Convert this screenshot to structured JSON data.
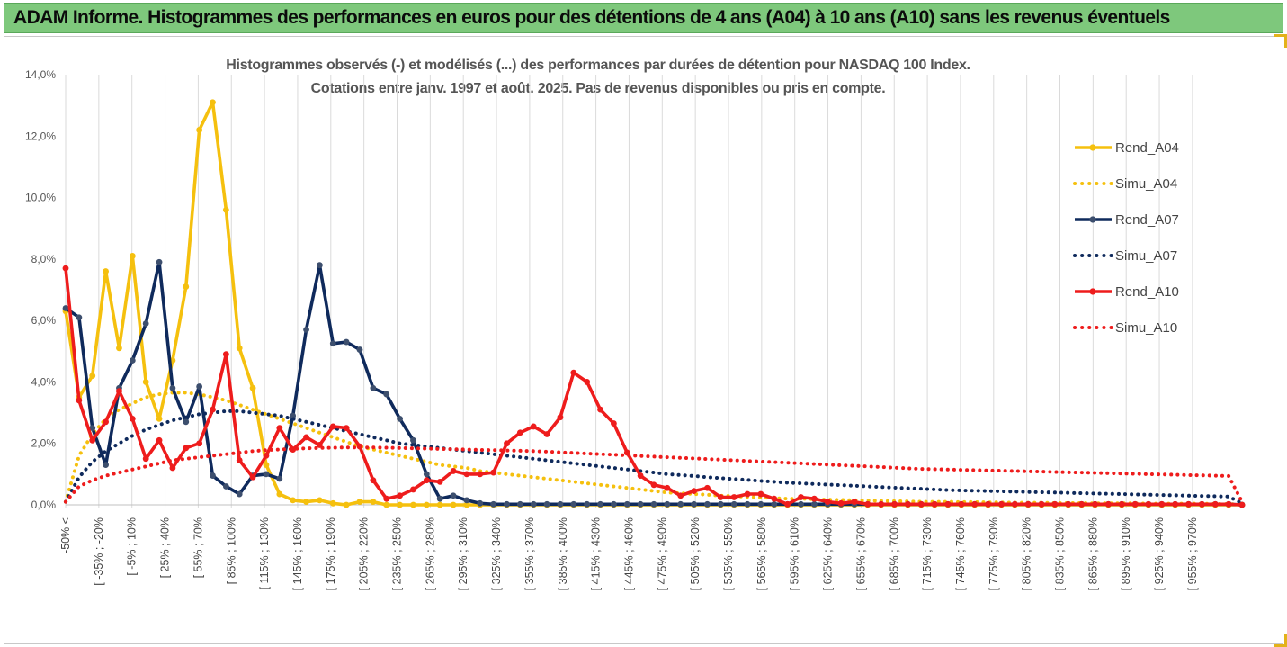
{
  "banner": {
    "title": "ADAM Informe. Histogrammes des performances en euros pour des détentions de 4 ans (A04) à 10 ans (A10) sans les revenus éventuels"
  },
  "colors": {
    "banner_bg": "#7ec87c",
    "A04": "#f5c00e",
    "A07": "#0f2a5c",
    "A10": "#ee1c1c"
  },
  "chart_data": {
    "type": "line",
    "title": "Histogrammes observés (-) et modélisés (...) des performances par durées de détention pour NASDAQ 100 Index.",
    "subtitle": "Cotations entre janv. 1997 et août. 2025. Pas de revenus disponibles ou pris en compte.",
    "ylim": [
      0,
      14
    ],
    "y_ticks": [
      "0,0%",
      "2,0%",
      "4,0%",
      "6,0%",
      "8,0%",
      "10,0%",
      "12,0%",
      "14,0%"
    ],
    "x_tick_labels": [
      "-50% <",
      "[ -35% ; -20%",
      "[ -5% ; 10%",
      "[ 25% ; 40%",
      "[ 55% ; 70%",
      "[ 85% ; 100%",
      "[ 115% ; 130%",
      "[ 145% ; 160%",
      "[ 175% ; 190%",
      "[ 205% ; 220%",
      "[ 235% ; 250%",
      "[ 265% ; 280%",
      "[ 295% ; 310%",
      "[ 325% ; 340%",
      "[ 355% ; 370%",
      "[ 385% ; 400%",
      "[ 415% ; 430%",
      "[ 445% ; 460%",
      "[ 475% ; 490%",
      "[ 505% ; 520%",
      "[ 535% ; 550%",
      "[ 565% ; 580%",
      "[ 595% ; 610%",
      "[ 625% ; 640%",
      "[ 655% ; 670%",
      "[ 685% ; 700%",
      "[ 715% ; 730%",
      "[ 745% ; 760%",
      "[ 775% ; 790%",
      "[ 805% ; 820%",
      "[ 835% ; 850%",
      "[ 865% ; 880%",
      "[ 895% ; 910%",
      "[ 925% ; 940%",
      "[ 955% ; 970%"
    ],
    "legend_position": "right",
    "grid": "vertical",
    "series": [
      {
        "name": "Rend_A04",
        "style": "solid",
        "color": "#f5c00e",
        "values": [
          6.3,
          3.5,
          4.2,
          7.6,
          5.1,
          8.1,
          4.0,
          2.8,
          4.7,
          7.1,
          12.2,
          13.1,
          9.6,
          5.1,
          3.8,
          1.3,
          0.35,
          0.15,
          0.1,
          0.15,
          0.05,
          0,
          0.1,
          0.1,
          0,
          0,
          0,
          0,
          0,
          0,
          0,
          0,
          0,
          0,
          0,
          0,
          0,
          0,
          0,
          0,
          0,
          0,
          0,
          0,
          0,
          0,
          0,
          0,
          0,
          0,
          0,
          0,
          0,
          0,
          0,
          0,
          0,
          0,
          0,
          0,
          0,
          0,
          0,
          0,
          0,
          0,
          0,
          0,
          0,
          0,
          0,
          0,
          0,
          0,
          0,
          0,
          0,
          0,
          0,
          0,
          0,
          0,
          0,
          0,
          0,
          0,
          0,
          0,
          0
        ]
      },
      {
        "name": "Simu_A04",
        "style": "dotted",
        "color": "#f5c00e",
        "values": [
          0.1,
          1.6,
          2.3,
          2.8,
          3.1,
          3.3,
          3.5,
          3.6,
          3.65,
          3.65,
          3.6,
          3.5,
          3.4,
          3.25,
          3.1,
          2.95,
          2.8,
          2.65,
          2.5,
          2.35,
          2.2,
          2.05,
          1.9,
          1.8,
          1.7,
          1.6,
          1.5,
          1.4,
          1.3,
          1.25,
          1.2,
          1.1,
          1.05,
          1.0,
          0.95,
          0.9,
          0.85,
          0.8,
          0.75,
          0.7,
          0.65,
          0.6,
          0.55,
          0.5,
          0.45,
          0.4,
          0.38,
          0.35,
          0.33,
          0.3,
          0.28,
          0.26,
          0.24,
          0.22,
          0.2,
          0.2,
          0.18,
          0.17,
          0.16,
          0.15,
          0.14,
          0.13,
          0.12,
          0.11,
          0.1,
          0.1,
          0.1,
          0.09,
          0.09,
          0.08,
          0.08,
          0.07,
          0.07,
          0.07,
          0.06,
          0.06,
          0.06,
          0.05,
          0.05,
          0.05,
          0.05,
          0.04,
          0.04,
          0.04,
          0.04,
          0.04,
          0.03,
          0.03,
          0.01
        ]
      },
      {
        "name": "Rend_A07",
        "style": "solid",
        "color": "#0f2a5c",
        "values": [
          6.4,
          6.1,
          2.5,
          1.3,
          3.8,
          4.7,
          5.9,
          7.9,
          3.8,
          2.7,
          3.85,
          0.95,
          0.6,
          0.35,
          0.95,
          1.0,
          0.85,
          2.9,
          5.7,
          7.8,
          5.25,
          5.3,
          5.05,
          3.8,
          3.6,
          2.8,
          2.1,
          1.0,
          0.2,
          0.3,
          0.15,
          0.05,
          0.02,
          0.02,
          0.02,
          0.02,
          0.02,
          0.02,
          0.02,
          0.02,
          0.02,
          0.02,
          0.02,
          0.02,
          0.02,
          0.02,
          0.02,
          0.02,
          0.02,
          0.02,
          0.02,
          0.02,
          0.02,
          0.02,
          0.02,
          0.02,
          0.02,
          0.02,
          0.02,
          0.02,
          0.02,
          0.02,
          0.02,
          0.02,
          0.02,
          0.02,
          0.02,
          0.02,
          0.02,
          0.02,
          0.02,
          0.02,
          0.02,
          0.02,
          0.02,
          0.02,
          0.02,
          0.02,
          0.02,
          0.02,
          0.02,
          0.02,
          0.02,
          0.02,
          0.02,
          0.02,
          0.02,
          0.02,
          0.0
        ]
      },
      {
        "name": "Simu_A07",
        "style": "dotted",
        "color": "#0f2a5c",
        "values": [
          0.1,
          0.9,
          1.4,
          1.75,
          2.0,
          2.25,
          2.45,
          2.6,
          2.75,
          2.85,
          2.95,
          3.0,
          3.05,
          3.05,
          3.0,
          2.95,
          2.9,
          2.8,
          2.7,
          2.6,
          2.5,
          2.4,
          2.3,
          2.2,
          2.1,
          2.0,
          1.95,
          1.9,
          1.85,
          1.8,
          1.75,
          1.7,
          1.65,
          1.6,
          1.55,
          1.5,
          1.45,
          1.4,
          1.35,
          1.3,
          1.25,
          1.2,
          1.15,
          1.1,
          1.05,
          1.0,
          0.97,
          0.94,
          0.9,
          0.87,
          0.84,
          0.81,
          0.78,
          0.75,
          0.72,
          0.7,
          0.68,
          0.66,
          0.64,
          0.62,
          0.6,
          0.58,
          0.56,
          0.54,
          0.52,
          0.5,
          0.48,
          0.47,
          0.46,
          0.45,
          0.44,
          0.43,
          0.42,
          0.41,
          0.4,
          0.39,
          0.38,
          0.37,
          0.36,
          0.35,
          0.34,
          0.33,
          0.32,
          0.31,
          0.3,
          0.29,
          0.28,
          0.27,
          0.05
        ]
      },
      {
        "name": "Rend_A10",
        "style": "solid",
        "color": "#ee1c1c",
        "values": [
          7.7,
          3.4,
          2.1,
          2.7,
          3.7,
          2.8,
          1.5,
          2.1,
          1.2,
          1.85,
          2.0,
          3.1,
          4.9,
          1.45,
          0.9,
          1.6,
          2.5,
          1.8,
          2.2,
          1.95,
          2.55,
          2.5,
          1.9,
          0.8,
          0.2,
          0.3,
          0.5,
          0.8,
          0.75,
          1.1,
          1.0,
          1.0,
          1.05,
          2.0,
          2.35,
          2.55,
          2.3,
          2.85,
          4.3,
          4.0,
          3.1,
          2.65,
          1.7,
          0.95,
          0.65,
          0.55,
          0.3,
          0.45,
          0.55,
          0.25,
          0.25,
          0.35,
          0.35,
          0.2,
          0.02,
          0.25,
          0.2,
          0.1,
          0.05,
          0.1,
          0.02,
          0.02,
          0.02,
          0.02,
          0.02,
          0.02,
          0.02,
          0.02,
          0.02,
          0.02,
          0.02,
          0.02,
          0.02,
          0.02,
          0.02,
          0.02,
          0.02,
          0.02,
          0.02,
          0.02,
          0.02,
          0.02,
          0.02,
          0.02,
          0.02,
          0.02,
          0.02,
          0.02,
          0.0
        ]
      },
      {
        "name": "Simu_A10",
        "style": "dotted",
        "color": "#ee1c1c",
        "values": [
          0.1,
          0.6,
          0.8,
          0.95,
          1.05,
          1.15,
          1.25,
          1.35,
          1.45,
          1.5,
          1.55,
          1.6,
          1.65,
          1.7,
          1.75,
          1.78,
          1.8,
          1.82,
          1.84,
          1.85,
          1.86,
          1.87,
          1.87,
          1.87,
          1.86,
          1.85,
          1.84,
          1.83,
          1.82,
          1.81,
          1.8,
          1.79,
          1.78,
          1.77,
          1.76,
          1.75,
          1.73,
          1.71,
          1.69,
          1.67,
          1.65,
          1.63,
          1.61,
          1.59,
          1.57,
          1.55,
          1.53,
          1.51,
          1.49,
          1.47,
          1.45,
          1.43,
          1.41,
          1.39,
          1.37,
          1.35,
          1.33,
          1.31,
          1.29,
          1.27,
          1.25,
          1.23,
          1.21,
          1.19,
          1.17,
          1.16,
          1.15,
          1.14,
          1.13,
          1.12,
          1.11,
          1.1,
          1.09,
          1.08,
          1.07,
          1.06,
          1.05,
          1.04,
          1.03,
          1.02,
          1.01,
          1.0,
          0.99,
          0.98,
          0.97,
          0.96,
          0.95,
          0.94,
          0.1
        ]
      }
    ]
  }
}
